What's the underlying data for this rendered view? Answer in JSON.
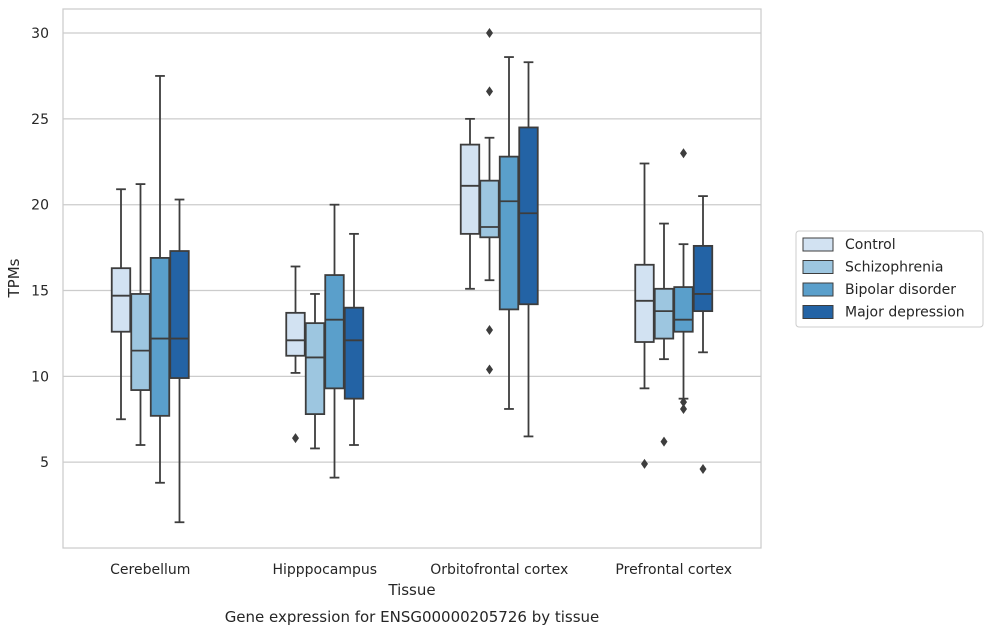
{
  "chart_data": {
    "type": "box",
    "xlabel": "Tissue",
    "ylabel": "TPMs",
    "caption": "Gene expression for ENSG00000205726 by tissue",
    "ylim": [
      0,
      31.4
    ],
    "yticks": [
      5,
      10,
      15,
      20,
      25,
      30
    ],
    "grid": true,
    "legend_position": "right",
    "categories": [
      "Cerebellum",
      "Hipppocampus",
      "Orbitofrontal cortex",
      "Prefrontal cortex"
    ],
    "series": [
      {
        "name": "Control",
        "color": "#d2e2f2",
        "boxes": [
          {
            "whislo": 7.5,
            "q1": 12.6,
            "med": 14.7,
            "q3": 16.3,
            "whishi": 20.9,
            "fliers": []
          },
          {
            "whislo": 10.2,
            "q1": 11.2,
            "med": 12.1,
            "q3": 13.7,
            "whishi": 16.4,
            "fliers": [
              6.4
            ]
          },
          {
            "whislo": 15.1,
            "q1": 18.3,
            "med": 21.1,
            "q3": 23.5,
            "whishi": 25.0,
            "fliers": []
          },
          {
            "whislo": 9.3,
            "q1": 12.0,
            "med": 14.4,
            "q3": 16.5,
            "whishi": 22.4,
            "fliers": [
              4.9
            ]
          }
        ]
      },
      {
        "name": "Schizophrenia",
        "color": "#9dc6e0",
        "boxes": [
          {
            "whislo": 6.0,
            "q1": 9.2,
            "med": 11.5,
            "q3": 14.8,
            "whishi": 21.2,
            "fliers": []
          },
          {
            "whislo": 5.8,
            "q1": 7.8,
            "med": 11.1,
            "q3": 13.1,
            "whishi": 14.8,
            "fliers": []
          },
          {
            "whislo": 15.6,
            "q1": 18.1,
            "med": 18.7,
            "q3": 21.4,
            "whishi": 23.9,
            "fliers": [
              12.7,
              10.4,
              26.6,
              30.0
            ]
          },
          {
            "whislo": 11.0,
            "q1": 12.2,
            "med": 13.8,
            "q3": 15.1,
            "whishi": 18.9,
            "fliers": [
              6.2
            ]
          }
        ]
      },
      {
        "name": "Bipolar disorder",
        "color": "#5a9fcb",
        "boxes": [
          {
            "whislo": 3.8,
            "q1": 7.7,
            "med": 12.2,
            "q3": 16.9,
            "whishi": 27.5,
            "fliers": []
          },
          {
            "whislo": 4.1,
            "q1": 9.3,
            "med": 13.3,
            "q3": 15.9,
            "whishi": 20.0,
            "fliers": []
          },
          {
            "whislo": 8.1,
            "q1": 13.9,
            "med": 20.2,
            "q3": 22.8,
            "whishi": 28.6,
            "fliers": []
          },
          {
            "whislo": 8.7,
            "q1": 12.6,
            "med": 13.3,
            "q3": 15.2,
            "whishi": 17.7,
            "fliers": [
              8.5,
              8.1,
              23.0
            ]
          }
        ]
      },
      {
        "name": "Major depression",
        "color": "#2363a5",
        "boxes": [
          {
            "whislo": 1.5,
            "q1": 9.9,
            "med": 12.2,
            "q3": 17.3,
            "whishi": 20.3,
            "fliers": []
          },
          {
            "whislo": 6.0,
            "q1": 8.7,
            "med": 12.1,
            "q3": 14.0,
            "whishi": 18.3,
            "fliers": []
          },
          {
            "whislo": 6.5,
            "q1": 14.2,
            "med": 19.5,
            "q3": 24.5,
            "whishi": 28.3,
            "fliers": []
          },
          {
            "whislo": 11.4,
            "q1": 13.8,
            "med": 14.8,
            "q3": 17.6,
            "whishi": 20.5,
            "fliers": [
              4.6
            ]
          }
        ]
      }
    ]
  }
}
